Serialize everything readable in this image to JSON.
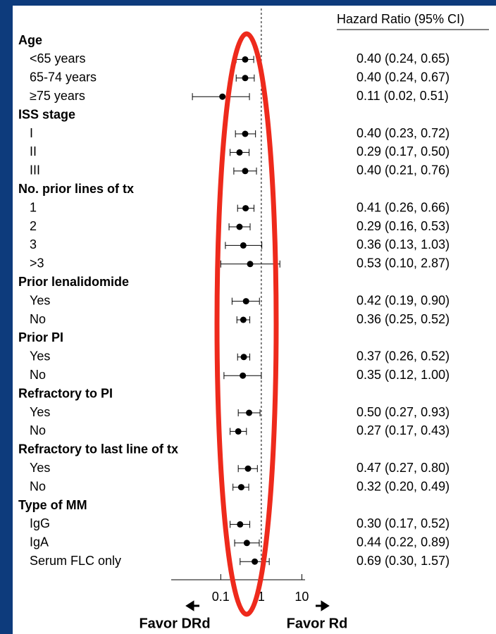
{
  "chart_data": {
    "type": "forest",
    "column_header": "Hazard Ratio (95% CI)",
    "xlim": [
      0.006,
      12
    ],
    "xticks": [
      0.1,
      1,
      10
    ],
    "log_scale": true,
    "favor_left": "Favor DRd",
    "favor_right": "Favor Rd",
    "groups": [
      {
        "name": "Age",
        "rows": [
          {
            "label": "<65 years",
            "values": [
              0.4,
              0.24,
              0.65
            ],
            "value_label": "0.40 (0.24, 0.65)"
          },
          {
            "label": "65-74 years",
            "values": [
              0.4,
              0.24,
              0.67
            ],
            "value_label": "0.40 (0.24, 0.67)"
          },
          {
            "label": "≥75 years",
            "values": [
              0.11,
              0.02,
              0.51
            ],
            "value_label": "0.11 (0.02, 0.51)"
          }
        ]
      },
      {
        "name": "ISS stage",
        "rows": [
          {
            "label": "I",
            "values": [
              0.4,
              0.23,
              0.72
            ],
            "value_label": "0.40 (0.23, 0.72)"
          },
          {
            "label": "II",
            "values": [
              0.29,
              0.17,
              0.5
            ],
            "value_label": "0.29 (0.17, 0.50)"
          },
          {
            "label": "III",
            "values": [
              0.4,
              0.21,
              0.76
            ],
            "value_label": "0.40 (0.21, 0.76)"
          }
        ]
      },
      {
        "name": "No. prior lines of tx",
        "rows": [
          {
            "label": "1",
            "values": [
              0.41,
              0.26,
              0.66
            ],
            "value_label": "0.41 (0.26, 0.66)"
          },
          {
            "label": "2",
            "values": [
              0.29,
              0.16,
              0.53
            ],
            "value_label": "0.29 (0.16, 0.53)"
          },
          {
            "label": "3",
            "values": [
              0.36,
              0.13,
              1.03
            ],
            "value_label": "0.36 (0.13, 1.03)"
          },
          {
            "label": ">3",
            "values": [
              0.53,
              0.1,
              2.87
            ],
            "value_label": "0.53 (0.10, 2.87)"
          }
        ]
      },
      {
        "name": "Prior lenalidomide",
        "rows": [
          {
            "label": "Yes",
            "values": [
              0.42,
              0.19,
              0.9
            ],
            "value_label": "0.42 (0.19, 0.90)"
          },
          {
            "label": "No",
            "values": [
              0.36,
              0.25,
              0.52
            ],
            "value_label": "0.36 (0.25, 0.52)"
          }
        ]
      },
      {
        "name": "Prior PI",
        "rows": [
          {
            "label": "Yes",
            "values": [
              0.37,
              0.26,
              0.52
            ],
            "value_label": "0.37 (0.26, 0.52)"
          },
          {
            "label": "No",
            "values": [
              0.35,
              0.12,
              1.0
            ],
            "value_label": "0.35 (0.12, 1.00)"
          }
        ]
      },
      {
        "name": "Refractory to PI",
        "rows": [
          {
            "label": "Yes",
            "values": [
              0.5,
              0.27,
              0.93
            ],
            "value_label": "0.50 (0.27, 0.93)"
          },
          {
            "label": "No",
            "values": [
              0.27,
              0.17,
              0.43
            ],
            "value_label": "0.27 (0.17, 0.43)"
          }
        ]
      },
      {
        "name": "Refractory to last line of tx",
        "rows": [
          {
            "label": "Yes",
            "values": [
              0.47,
              0.27,
              0.8
            ],
            "value_label": "0.47 (0.27, 0.80)"
          },
          {
            "label": "No",
            "values": [
              0.32,
              0.2,
              0.49
            ],
            "value_label": "0.32 (0.20, 0.49)"
          }
        ]
      },
      {
        "name": "Type of MM",
        "rows": [
          {
            "label": "IgG",
            "values": [
              0.3,
              0.17,
              0.52
            ],
            "value_label": "0.30 (0.17, 0.52)"
          },
          {
            "label": "IgA",
            "values": [
              0.44,
              0.22,
              0.89
            ],
            "value_label": "0.44 (0.22, 0.89)"
          },
          {
            "label": "Serum FLC only",
            "values": [
              0.69,
              0.3,
              1.57
            ],
            "value_label": "0.69 (0.30, 1.57)"
          }
        ]
      }
    ]
  }
}
